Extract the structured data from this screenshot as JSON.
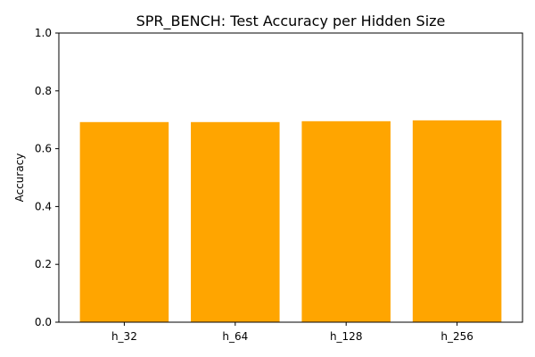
{
  "chart_data": {
    "type": "bar",
    "title": "SPR_BENCH: Test Accuracy per Hidden Size",
    "xlabel": "",
    "ylabel": "Accuracy",
    "categories": [
      "h_32",
      "h_64",
      "h_128",
      "h_256"
    ],
    "values": [
      0.692,
      0.692,
      0.695,
      0.698
    ],
    "ylim": [
      0,
      1.0
    ],
    "yticks": [
      0.0,
      0.2,
      0.4,
      0.6,
      0.8,
      1.0
    ],
    "ytick_labels": [
      "0.0",
      "0.2",
      "0.4",
      "0.6",
      "0.8",
      "1.0"
    ],
    "bar_color": "#ffa500",
    "grid": false
  }
}
